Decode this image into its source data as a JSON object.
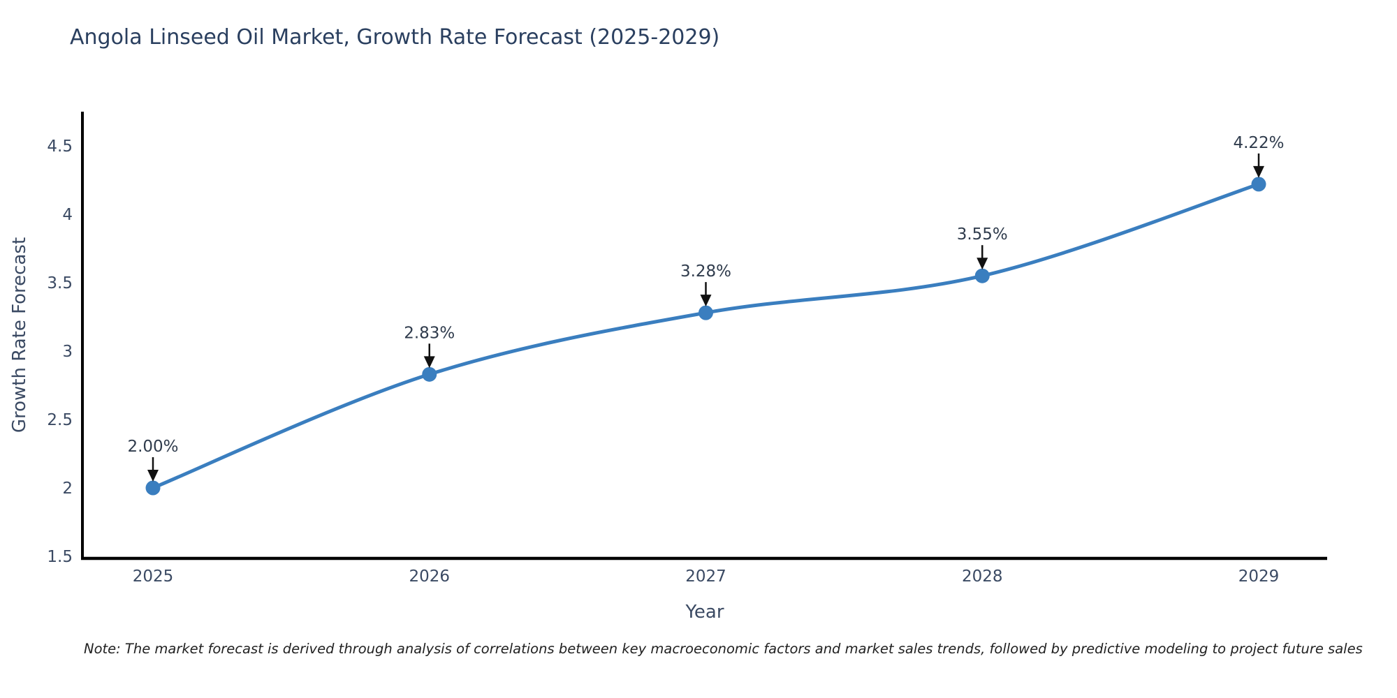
{
  "title": "Angola Linseed Oil Market, Growth Rate Forecast (2025-2029)",
  "note": "Note: The market forecast is derived through analysis of correlations between key macroeconomic factors and market sales trends, followed by predictive modeling to project future sales",
  "chart_data": {
    "type": "line",
    "title": "Angola Linseed Oil Market, Growth Rate Forecast (2025-2029)",
    "x": [
      "2025",
      "2026",
      "2027",
      "2028",
      "2029"
    ],
    "values": [
      2.0,
      2.83,
      3.28,
      3.55,
      4.22
    ],
    "point_labels": [
      "2.00%",
      "2.83%",
      "3.28%",
      "3.55%",
      "4.22%"
    ],
    "xlabel": "Year",
    "ylabel": "Growth Rate Forecast",
    "ylim": [
      1.5,
      4.5
    ],
    "yticks": [
      1.5,
      2,
      2.5,
      3,
      3.5,
      4,
      4.5
    ],
    "line_shape": "spline",
    "grid": false,
    "legend_position": "none",
    "colors": {
      "line": "#3a7ebf",
      "marker": "#3a7ebf",
      "axis": "#000000",
      "title": "#2a3f5f",
      "ticks": "#3b4a63",
      "annotation": "#2f3b4c",
      "arrow": "#111111"
    }
  }
}
